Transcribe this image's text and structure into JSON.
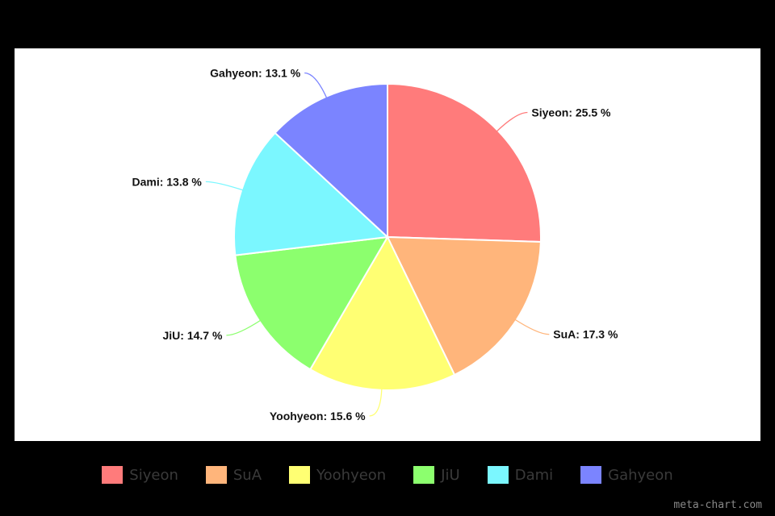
{
  "chart_data": {
    "type": "pie",
    "title": "",
    "label_format": "{name}: {value} %",
    "start": "top",
    "direction": "clockwise",
    "slices": [
      {
        "name": "Siyeon",
        "value": 25.5,
        "color": "#ff7b7b"
      },
      {
        "name": "SuA",
        "value": 17.3,
        "color": "#ffb57b"
      },
      {
        "name": "Yoohyeon",
        "value": 15.6,
        "color": "#ffff73"
      },
      {
        "name": "JiU",
        "value": 14.7,
        "color": "#8cff6e"
      },
      {
        "name": "Dami",
        "value": 13.8,
        "color": "#7bf7ff"
      },
      {
        "name": "Gahyeon",
        "value": 13.1,
        "color": "#7b84ff"
      }
    ],
    "legend": {
      "position": "bottom"
    }
  },
  "watermark": "meta-chart.com"
}
